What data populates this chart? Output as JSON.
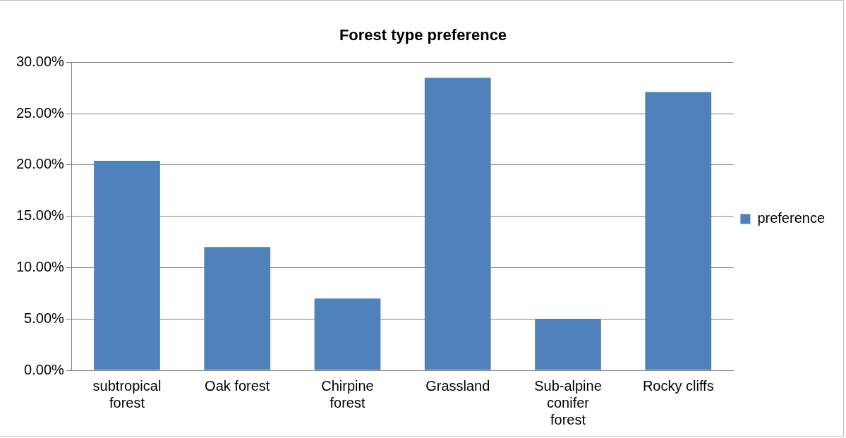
{
  "chart_data": {
    "type": "bar",
    "title": "Forest type preference",
    "categories": [
      "subtropical forest",
      "Oak forest",
      "Chirpine forest",
      "Grassland",
      "Sub-alpine conifer forest",
      "Rocky cliffs"
    ],
    "series": [
      {
        "name": "preference",
        "color": "#4f81bd",
        "values": [
          20.4,
          12,
          7,
          28.5,
          5,
          27.1
        ]
      }
    ],
    "ylim": [
      0,
      30
    ],
    "yticks": [
      {
        "value": 0,
        "label": "0.00%"
      },
      {
        "value": 5,
        "label": "5.00%"
      },
      {
        "value": 10,
        "label": "10.00%"
      },
      {
        "value": 15,
        "label": "15.00%"
      },
      {
        "value": 20,
        "label": "20.00%"
      },
      {
        "value": 25,
        "label": "25.00%"
      },
      {
        "value": 30,
        "label": "30.00%"
      }
    ],
    "grid": "y",
    "legend": "right"
  }
}
